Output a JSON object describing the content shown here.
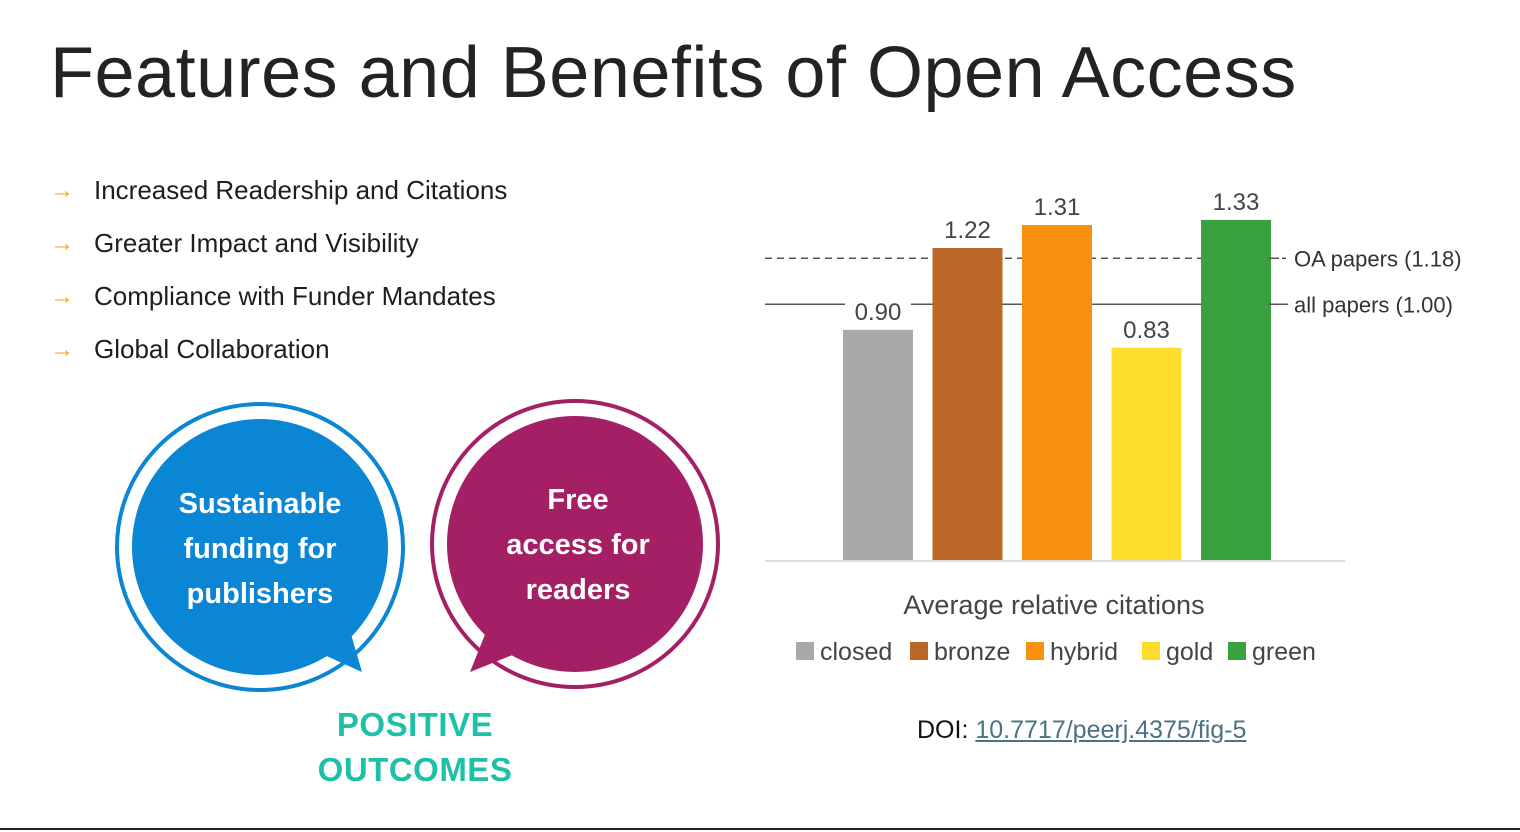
{
  "slide": {
    "title": "Features and Benefits of Open Access",
    "bullets": [
      "Increased Readership and Citations",
      "Greater Impact and Visibility",
      "Compliance with Funder Mandates",
      "Global Collaboration"
    ],
    "bullet_icon": "arrow-right-icon"
  },
  "bubbles": {
    "left": {
      "lines": [
        "Sustainable",
        "funding for",
        "publishers"
      ],
      "color": "#0a86d4"
    },
    "right": {
      "lines": [
        "Free",
        "access for",
        "readers"
      ],
      "color": "#a41f64"
    },
    "caption_lines": [
      "POSITIVE",
      "OUTCOMES"
    ],
    "caption_color": "#1ec0a8"
  },
  "chart_data": {
    "type": "bar",
    "xlabel": "Average relative citations",
    "categories": [
      "closed",
      "bronze",
      "hybrid",
      "gold",
      "green"
    ],
    "values": [
      0.9,
      1.22,
      1.31,
      0.83,
      1.33
    ],
    "value_labels": [
      "0.90",
      "1.22",
      "1.31",
      "0.83",
      "1.33"
    ],
    "colors": [
      "#a9a9a9",
      "#bb6727",
      "#f7900d",
      "#fddc2c",
      "#3aa13f"
    ],
    "ylim": [
      0,
      1.4
    ],
    "reference_lines": [
      {
        "label": "OA papers (1.18)",
        "value": 1.18,
        "style": "dashed"
      },
      {
        "label": "all papers (1.00)",
        "value": 1.0,
        "style": "solid"
      }
    ],
    "legend_placement": "bottom",
    "grid": false
  },
  "doi": {
    "prefix": "DOI:",
    "link_text": "10.7717/peerj.4375/fig-5"
  }
}
